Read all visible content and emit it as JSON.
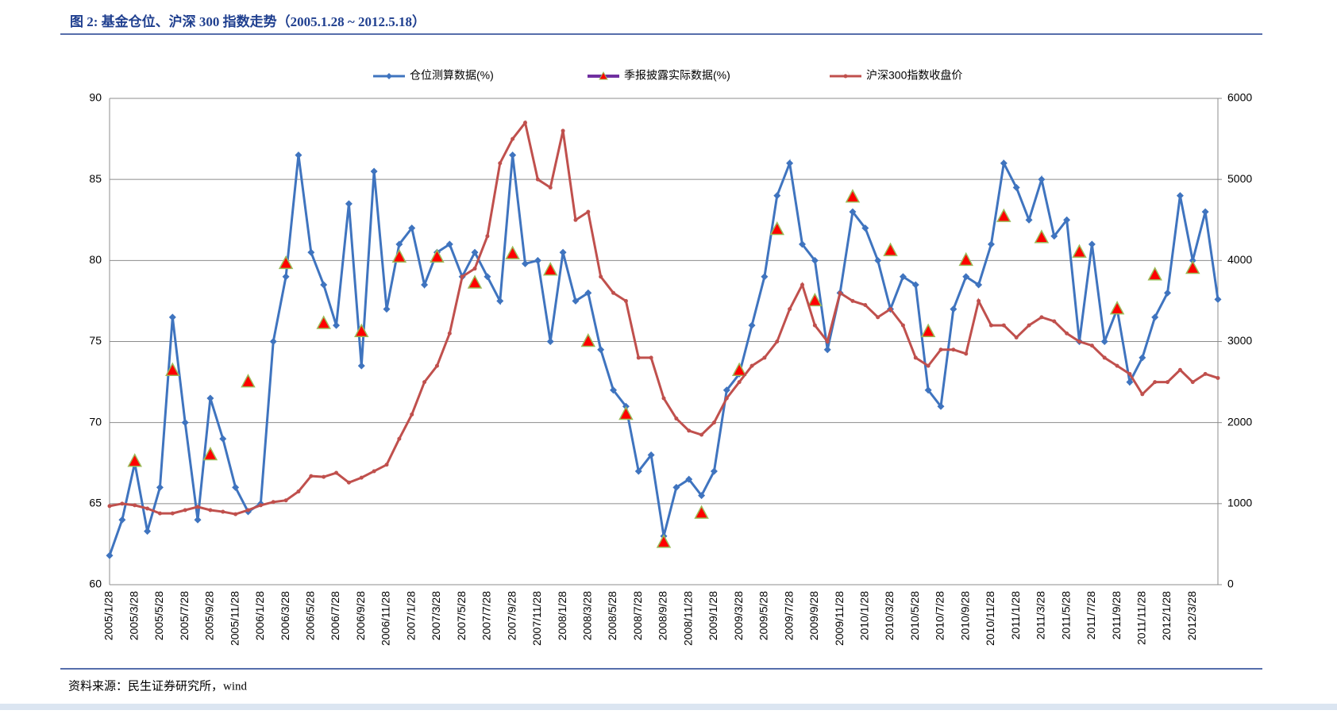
{
  "chart_data": {
    "type": "line",
    "title": "图 2:  基金仓位、沪深 300 指数走势（2005.1.28 ~ 2012.5.18）",
    "source": "资料来源：民生证券研究所，wind",
    "categories": [
      "2005/1/28",
      null,
      "2005/3/28",
      null,
      "2005/5/28",
      null,
      "2005/7/28",
      null,
      "2005/9/28",
      null,
      "2005/11/28",
      null,
      "2006/1/28",
      null,
      "2006/3/28",
      null,
      "2006/5/28",
      null,
      "2006/7/28",
      null,
      "2006/9/28",
      null,
      "2006/11/28",
      null,
      "2007/1/28",
      null,
      "2007/3/28",
      null,
      "2007/5/28",
      null,
      "2007/7/28",
      null,
      "2007/9/28",
      null,
      "2007/11/28",
      null,
      "2008/1/28",
      null,
      "2008/3/28",
      null,
      "2008/5/28",
      null,
      "2008/7/28",
      null,
      "2008/9/28",
      null,
      "2008/11/28",
      null,
      "2009/1/28",
      null,
      "2009/3/28",
      null,
      "2009/5/28",
      null,
      "2009/7/28",
      null,
      "2009/9/28",
      null,
      "2009/11/28",
      null,
      "2010/1/28",
      null,
      "2010/3/28",
      null,
      "2010/5/28",
      null,
      "2010/7/28",
      null,
      "2010/9/28",
      null,
      "2010/11/28",
      null,
      "2011/1/28",
      null,
      "2011/3/28",
      null,
      "2011/5/28",
      null,
      "2011/7/28",
      null,
      "2011/9/28",
      null,
      "2011/11/28",
      null,
      "2012/1/28",
      null,
      "2012/3/28",
      null,
      null
    ],
    "series": [
      {
        "name": "仓位测算数据(%)",
        "color": "#3f74bf",
        "marker": "diamond",
        "values": [
          61.8,
          64,
          67.5,
          63.3,
          66,
          76.5,
          70,
          64,
          71.5,
          69,
          66,
          64.5,
          65,
          75,
          79,
          86.5,
          80.5,
          78.5,
          76,
          83.5,
          73.5,
          85.5,
          77,
          81,
          82,
          78.5,
          80.5,
          81,
          79,
          80.5,
          79,
          77.5,
          86.5,
          79.8,
          80,
          75,
          80.5,
          77.5,
          78,
          74.5,
          72,
          71,
          67,
          68,
          63,
          66,
          66.5,
          65.5,
          67,
          72,
          73,
          76,
          79,
          84,
          86,
          81,
          80,
          74.5,
          78,
          83,
          82,
          80,
          77,
          79,
          78.5,
          72,
          71,
          77,
          79,
          78.5,
          81,
          86,
          84.5,
          82.5,
          85,
          81.5,
          82.5,
          75,
          81,
          75,
          77,
          72.5,
          74,
          76.5,
          78,
          84,
          80,
          83,
          77.6
        ]
      },
      {
        "name": "季报披露实际数据(%)",
        "color": "#7030a0",
        "marker": "triangle",
        "line": false,
        "values": [
          null,
          null,
          67.6,
          null,
          null,
          73.2,
          null,
          null,
          68,
          null,
          null,
          72.5,
          null,
          null,
          79.8,
          null,
          null,
          76.1,
          null,
          null,
          75.6,
          null,
          null,
          80.2,
          null,
          null,
          80.2,
          null,
          null,
          78.6,
          null,
          null,
          80.4,
          null,
          null,
          79.4,
          null,
          null,
          75.0,
          null,
          null,
          70.5,
          null,
          null,
          62.6,
          null,
          null,
          64.4,
          null,
          null,
          73.2,
          null,
          null,
          81.9,
          null,
          null,
          77.5,
          null,
          null,
          83.9,
          null,
          null,
          80.6,
          null,
          null,
          75.6,
          null,
          null,
          80.0,
          null,
          null,
          82.7,
          null,
          null,
          81.4,
          null,
          null,
          80.5,
          null,
          null,
          77.0,
          null,
          null,
          79.1,
          null,
          null,
          79.5,
          null,
          null
        ]
      },
      {
        "name": "沪深300指数收盘价",
        "color": "#c0504d",
        "marker": "dot",
        "axis": "y2",
        "values": [
          970,
          1000,
          980,
          940,
          880,
          880,
          920,
          960,
          920,
          900,
          870,
          920,
          980,
          1020,
          1040,
          1150,
          1340,
          1330,
          1380,
          1260,
          1320,
          1400,
          1480,
          1800,
          2100,
          2500,
          2700,
          3100,
          3800,
          3900,
          4300,
          5200,
          5500,
          5700,
          5000,
          4900,
          5600,
          4500,
          4600,
          3800,
          3600,
          3500,
          2800,
          2800,
          2300,
          2050,
          1900,
          1850,
          2000,
          2300,
          2500,
          2700,
          2800,
          3000,
          3400,
          3700,
          3200,
          3000,
          3600,
          3500,
          3450,
          3300,
          3400,
          3200,
          2800,
          2700,
          2900,
          2900,
          2850,
          3500,
          3200,
          3200,
          3050,
          3200,
          3300,
          3250,
          3100,
          3000,
          2950,
          2800,
          2700,
          2600,
          2350,
          2500,
          2500,
          2650,
          2500,
          2600,
          2550
        ]
      }
    ],
    "ylim": [
      60,
      90
    ],
    "yticks": [
      60,
      65,
      70,
      75,
      80,
      85,
      90
    ],
    "y2lim": [
      0,
      6000
    ],
    "y2ticks": [
      0,
      1000,
      2000,
      3000,
      4000,
      5000,
      6000
    ],
    "grid": true,
    "legend": "top"
  }
}
